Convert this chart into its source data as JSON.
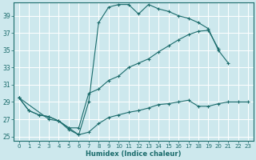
{
  "bg_color": "#cde8ed",
  "grid_color": "#ffffff",
  "line_color": "#1a6b6b",
  "xlabel": "Humidex (Indice chaleur)",
  "xlim": [
    -0.5,
    23.5
  ],
  "ylim": [
    24.5,
    40.5
  ],
  "xticks": [
    0,
    1,
    2,
    3,
    4,
    5,
    6,
    7,
    8,
    9,
    10,
    11,
    12,
    13,
    14,
    15,
    16,
    17,
    18,
    19,
    20,
    21,
    22,
    23
  ],
  "yticks": [
    25,
    27,
    29,
    31,
    33,
    35,
    37,
    39
  ],
  "line1_x": [
    0,
    1,
    2,
    3,
    4,
    5,
    6,
    7,
    8,
    9,
    10,
    11,
    12,
    13,
    14,
    15,
    16,
    17,
    18,
    19,
    20,
    21
  ],
  "line1_y": [
    29.5,
    28.0,
    27.5,
    27.3,
    26.8,
    25.8,
    25.2,
    29.0,
    38.2,
    40.0,
    40.3,
    40.3,
    39.2,
    40.3,
    39.8,
    39.5,
    39.0,
    38.7,
    38.2,
    37.5,
    35.0,
    33.5
  ],
  "line2_x": [
    0,
    1,
    2,
    3,
    4,
    5,
    6,
    7,
    8,
    9,
    10,
    11,
    12,
    13,
    14,
    15,
    16,
    17,
    18,
    19,
    20
  ],
  "line2_y": [
    29.5,
    28.0,
    27.5,
    27.3,
    26.8,
    26.0,
    26.0,
    30.0,
    30.5,
    31.5,
    32.0,
    33.0,
    33.5,
    34.0,
    34.8,
    35.5,
    36.2,
    36.8,
    37.2,
    37.3,
    35.2
  ],
  "line3_x": [
    0,
    3,
    4,
    5,
    6,
    7,
    8,
    9,
    10,
    11,
    12,
    13,
    14,
    15,
    16,
    17,
    18,
    19,
    20,
    21,
    22,
    23
  ],
  "line3_y": [
    29.5,
    27.0,
    26.8,
    26.0,
    25.2,
    25.5,
    26.5,
    27.2,
    27.5,
    27.8,
    28.0,
    28.3,
    28.7,
    28.8,
    29.0,
    29.2,
    28.5,
    28.5,
    28.8,
    29.0,
    29.0,
    29.0
  ]
}
